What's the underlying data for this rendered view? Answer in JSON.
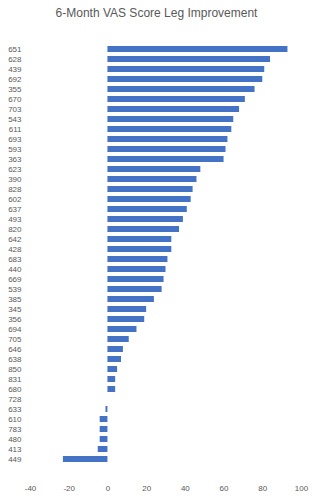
{
  "chart_data": {
    "type": "bar",
    "orientation": "horizontal",
    "title": "6-Month VAS Score Leg Improvement",
    "categories": [
      "651",
      "628",
      "439",
      "692",
      "355",
      "670",
      "703",
      "543",
      "611",
      "693",
      "593",
      "363",
      "623",
      "390",
      "828",
      "602",
      "637",
      "493",
      "820",
      "642",
      "428",
      "683",
      "440",
      "669",
      "539",
      "385",
      "345",
      "356",
      "694",
      "705",
      "646",
      "638",
      "850",
      "831",
      "680",
      "728",
      "633",
      "610",
      "783",
      "480",
      "413",
      "449"
    ],
    "values": [
      93,
      84,
      81,
      80,
      76,
      71,
      68,
      65,
      64,
      62,
      61,
      60,
      48,
      46,
      44,
      43,
      41,
      39,
      37,
      33,
      33,
      31,
      30,
      29,
      28,
      24,
      20,
      19,
      15,
      11,
      8,
      7,
      5,
      4,
      4,
      0,
      -1,
      -4,
      -4,
      -4,
      -5,
      -23
    ],
    "color": "#4472c4",
    "xlim": [
      -40,
      100
    ],
    "xticks": [
      -40,
      -20,
      0,
      20,
      40,
      60,
      80,
      100
    ],
    "grid": false
  }
}
